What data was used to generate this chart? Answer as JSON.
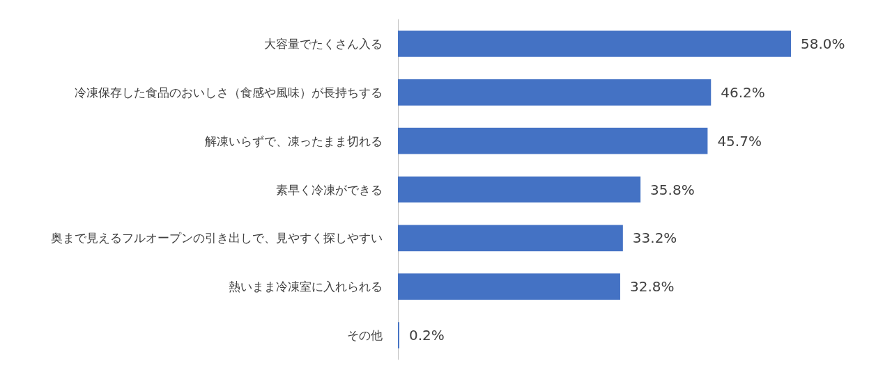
{
  "chart_data": {
    "type": "bar",
    "orientation": "horizontal",
    "categories": [
      "大容量でたくさん入る",
      "冷凍保存した食品のおいしさ（食感や風味）が長持ちする",
      "解凍いらずで、凍ったまま切れる",
      "素早く冷凍ができる",
      "奥まで見えるフルオープンの引き出しで、見やすく探しやすい",
      "熱いまま冷凍室に入れられる",
      "その他"
    ],
    "values": [
      58.0,
      46.2,
      45.7,
      35.8,
      33.2,
      32.8,
      0.2
    ],
    "value_labels": [
      "58.0%",
      "46.2%",
      "45.7%",
      "35.8%",
      "33.2%",
      "32.8%",
      "0.2%"
    ],
    "color": "#4472c4"
  }
}
